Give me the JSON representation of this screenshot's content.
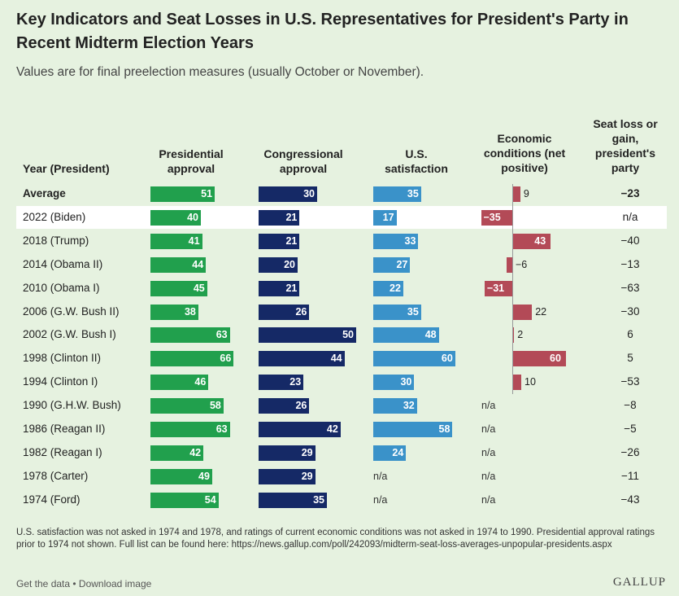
{
  "title": "Key Indicators and Seat Losses in U.S. Representatives for President's Party in Recent Midterm Election Years",
  "subtitle": "Values are for final preelection measures (usually October or November).",
  "headers": {
    "year": "Year (President)",
    "pres": "Presidential approval",
    "cong": "Congressional approval",
    "sat": "U.S. satisfaction",
    "econ": "Economic conditions (net positive)",
    "seat": "Seat loss or gain, president's party"
  },
  "chart_data": {
    "type": "table",
    "columns": [
      "Presidential approval",
      "Congressional approval",
      "U.S. satisfaction",
      "Economic conditions (net positive)",
      "Seat loss or gain, president's party"
    ],
    "rows": [
      {
        "label": "Average",
        "pres": 51,
        "cong": 30,
        "sat": 35,
        "econ": 9,
        "seat": "−23",
        "highlight": false,
        "bold": true
      },
      {
        "label": "2022 (Biden)",
        "pres": 40,
        "cong": 21,
        "sat": 17,
        "econ": -35,
        "seat": "n/a",
        "highlight": true,
        "bold": false
      },
      {
        "label": "2018 (Trump)",
        "pres": 41,
        "cong": 21,
        "sat": 33,
        "econ": 43,
        "seat": "−40",
        "highlight": false,
        "bold": false
      },
      {
        "label": "2014 (Obama II)",
        "pres": 44,
        "cong": 20,
        "sat": 27,
        "econ": -6,
        "seat": "−13",
        "highlight": false,
        "bold": false
      },
      {
        "label": "2010 (Obama I)",
        "pres": 45,
        "cong": 21,
        "sat": 22,
        "econ": -31,
        "seat": "−63",
        "highlight": false,
        "bold": false
      },
      {
        "label": "2006 (G.W. Bush II)",
        "pres": 38,
        "cong": 26,
        "sat": 35,
        "econ": 22,
        "seat": "−30",
        "highlight": false,
        "bold": false
      },
      {
        "label": "2002 (G.W. Bush I)",
        "pres": 63,
        "cong": 50,
        "sat": 48,
        "econ": 2,
        "seat": "6",
        "highlight": false,
        "bold": false
      },
      {
        "label": "1998 (Clinton II)",
        "pres": 66,
        "cong": 44,
        "sat": 60,
        "econ": 60,
        "seat": "5",
        "highlight": false,
        "bold": false
      },
      {
        "label": "1994 (Clinton I)",
        "pres": 46,
        "cong": 23,
        "sat": 30,
        "econ": 10,
        "seat": "−53",
        "highlight": false,
        "bold": false
      },
      {
        "label": "1990 (G.H.W. Bush)",
        "pres": 58,
        "cong": 26,
        "sat": 32,
        "econ": null,
        "seat": "−8",
        "highlight": false,
        "bold": false
      },
      {
        "label": "1986 (Reagan II)",
        "pres": 63,
        "cong": 42,
        "sat": 58,
        "econ": null,
        "seat": "−5",
        "highlight": false,
        "bold": false
      },
      {
        "label": "1982 (Reagan I)",
        "pres": 42,
        "cong": 29,
        "sat": 24,
        "econ": null,
        "seat": "−26",
        "highlight": false,
        "bold": false
      },
      {
        "label": "1978 (Carter)",
        "pres": 49,
        "cong": 29,
        "sat": null,
        "econ": null,
        "seat": "−11",
        "highlight": false,
        "bold": false
      },
      {
        "label": "1974 (Ford)",
        "pres": 54,
        "cong": 35,
        "sat": null,
        "econ": null,
        "seat": "−43",
        "highlight": false,
        "bold": false
      }
    ],
    "na_text": "n/a",
    "colors": {
      "pres": "#21a04d",
      "cong": "#152966",
      "sat": "#3a92c9",
      "econ": "#b34a57"
    }
  },
  "footnote": "U.S. satisfaction was not asked in 1974 and 1978, and ratings of current economic conditions was not asked in 1974 to 1990. Presidential approval ratings prior to 1974 not shown. Full list can be found here: https://news.gallup.com/poll/242093/midterm-seat-loss-averages-unpopular-presidents.aspx",
  "links": {
    "get_data": "Get the data",
    "sep": " • ",
    "download": "Download image"
  },
  "logo": "GALLUP"
}
